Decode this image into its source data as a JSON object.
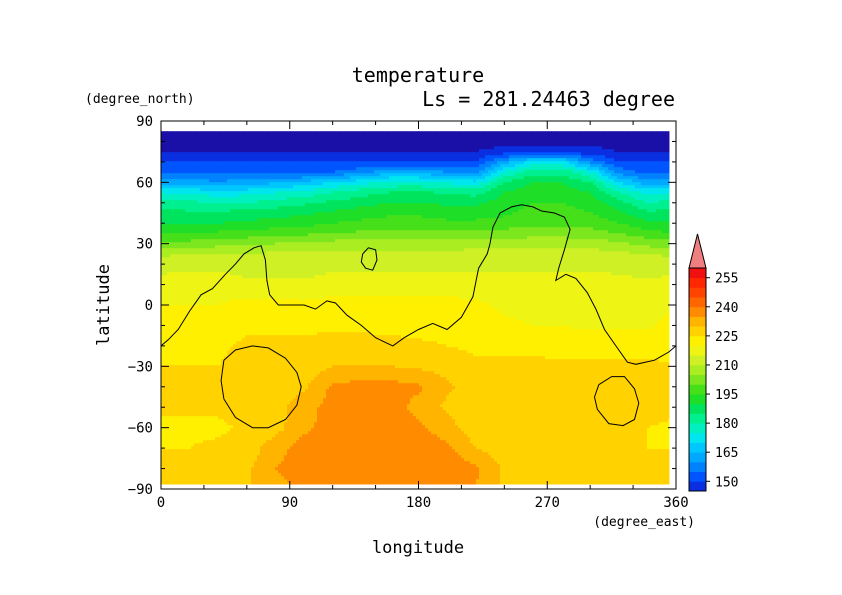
{
  "chart_data": {
    "type": "heatmap",
    "title": "temperature",
    "subtitle": "Ls = 281.24463 degree",
    "xlabel": "longitude",
    "ylabel": "latitude",
    "x_unit": "(degree_east)",
    "y_unit": "(degree_north)",
    "xlim": [
      0,
      360
    ],
    "ylim": [
      -90,
      90
    ],
    "x_ticks": [
      0,
      90,
      180,
      270,
      360
    ],
    "y_ticks": [
      90,
      60,
      30,
      0,
      -30,
      -60,
      -90
    ],
    "data_lat_range": [
      -87.5,
      85
    ],
    "data_lon_range": [
      0,
      355
    ],
    "colorbar": {
      "tick_labels": [
        150,
        165,
        180,
        195,
        210,
        225,
        240,
        255
      ],
      "levels": [
        {
          "lo": null,
          "hi": 145,
          "color": "#1a10a8"
        },
        {
          "lo": 145,
          "hi": 150,
          "color": "#0a2fe0"
        },
        {
          "lo": 150,
          "hi": 155,
          "color": "#0055ff"
        },
        {
          "lo": 155,
          "hi": 160,
          "color": "#0082ff"
        },
        {
          "lo": 160,
          "hi": 165,
          "color": "#00a8ff"
        },
        {
          "lo": 165,
          "hi": 170,
          "color": "#00c8ff"
        },
        {
          "lo": 170,
          "hi": 175,
          "color": "#00e6ee"
        },
        {
          "lo": 175,
          "hi": 180,
          "color": "#00f0c0"
        },
        {
          "lo": 180,
          "hi": 185,
          "color": "#00f090"
        },
        {
          "lo": 185,
          "hi": 190,
          "color": "#00e35c"
        },
        {
          "lo": 190,
          "hi": 195,
          "color": "#1ede28"
        },
        {
          "lo": 195,
          "hi": 200,
          "color": "#46e01a"
        },
        {
          "lo": 200,
          "hi": 205,
          "color": "#7ce61e"
        },
        {
          "lo": 205,
          "hi": 210,
          "color": "#aaee22"
        },
        {
          "lo": 210,
          "hi": 215,
          "color": "#cef024"
        },
        {
          "lo": 215,
          "hi": 220,
          "color": "#eef514"
        },
        {
          "lo": 220,
          "hi": 225,
          "color": "#fff000"
        },
        {
          "lo": 225,
          "hi": 230,
          "color": "#ffd200"
        },
        {
          "lo": 230,
          "hi": 235,
          "color": "#ffb400"
        },
        {
          "lo": 235,
          "hi": 240,
          "color": "#ff8c00"
        },
        {
          "lo": 240,
          "hi": 245,
          "color": "#ff6600"
        },
        {
          "lo": 245,
          "hi": 250,
          "color": "#ff4400"
        },
        {
          "lo": 250,
          "hi": 255,
          "color": "#ff2800"
        },
        {
          "lo": 255,
          "hi": 260,
          "color": "#f01010"
        },
        {
          "lo": 260,
          "hi": null,
          "color": "#f08080"
        }
      ]
    },
    "field": {
      "lons": [
        0,
        20,
        40,
        60,
        80,
        100,
        120,
        140,
        160,
        180,
        200,
        220,
        240,
        260,
        280,
        300,
        320,
        340,
        360
      ],
      "lats": [
        85,
        75,
        70,
        65,
        60,
        55,
        50,
        45,
        40,
        35,
        30,
        25,
        20,
        10,
        0,
        -10,
        -20,
        -30,
        -40,
        -50,
        -60,
        -70,
        -80,
        -87.5
      ],
      "values": [
        [
          140,
          140,
          140,
          140,
          140,
          140,
          140,
          140,
          140,
          140,
          140,
          140,
          140,
          140,
          140,
          140,
          140,
          140,
          140
        ],
        [
          145,
          145,
          145,
          145,
          145,
          145,
          145,
          145,
          145,
          145,
          145,
          145,
          147,
          147,
          147,
          147,
          145,
          145,
          145
        ],
        [
          150,
          150,
          150,
          150,
          150,
          150,
          150,
          150,
          150,
          150,
          150,
          150,
          162,
          172,
          172,
          158,
          150,
          150,
          150
        ],
        [
          154,
          153,
          153,
          153,
          153,
          153,
          155,
          158,
          163,
          163,
          160,
          158,
          175,
          183,
          183,
          175,
          158,
          153,
          154
        ],
        [
          163,
          162,
          161,
          162,
          164,
          166,
          170,
          173,
          176,
          176,
          174,
          172,
          185,
          190,
          190,
          185,
          170,
          162,
          163
        ],
        [
          175,
          174,
          172,
          173,
          175,
          177,
          180,
          183,
          185,
          186,
          184,
          183,
          190,
          193,
          193,
          190,
          180,
          173,
          175
        ],
        [
          182,
          181,
          180,
          180,
          182,
          184,
          186,
          188,
          190,
          190,
          189,
          189,
          192,
          195,
          195,
          193,
          187,
          180,
          182
        ],
        [
          187,
          186,
          186,
          187,
          188,
          189,
          191,
          193,
          194,
          194,
          193,
          193,
          194,
          197,
          197,
          195,
          191,
          186,
          187
        ],
        [
          190,
          190,
          190,
          191,
          192,
          193,
          195,
          196,
          197,
          197,
          196,
          196,
          197,
          199,
          199,
          198,
          195,
          191,
          190
        ],
        [
          195,
          195,
          196,
          197,
          198,
          199,
          200,
          201,
          202,
          202,
          201,
          201,
          202,
          203,
          203,
          202,
          200,
          197,
          195
        ],
        [
          202,
          202,
          203,
          204,
          205,
          206,
          207,
          207,
          207,
          207,
          207,
          208,
          208,
          208,
          208,
          208,
          206,
          203,
          202
        ],
        [
          209,
          210,
          210,
          210,
          211,
          211,
          211,
          211,
          211,
          211,
          211,
          212,
          212,
          212,
          212,
          212,
          211,
          210,
          209
        ],
        [
          213,
          214,
          214,
          213,
          212,
          212,
          214,
          214,
          214,
          214,
          214,
          214,
          214,
          214,
          214,
          214,
          213,
          212,
          213
        ],
        [
          217,
          217,
          217,
          216,
          216,
          216,
          217,
          217,
          217,
          217,
          217,
          217,
          217,
          217,
          217,
          217,
          217,
          216,
          217
        ],
        [
          220,
          220,
          220,
          222,
          222,
          221,
          222,
          222,
          222,
          222,
          222,
          221,
          219,
          218,
          218,
          218,
          218,
          218,
          220
        ],
        [
          222,
          222,
          222,
          224,
          224,
          224,
          224,
          224,
          223,
          223,
          223,
          222,
          221,
          220,
          220,
          219,
          219,
          219,
          222
        ],
        [
          224,
          224,
          224,
          226,
          226,
          226,
          227,
          227,
          227,
          226,
          225,
          224,
          224,
          224,
          223,
          223,
          223,
          223,
          224
        ],
        [
          225,
          225,
          225,
          227,
          227,
          227,
          230,
          230,
          230,
          229,
          228,
          226,
          226,
          226,
          226,
          226,
          226,
          226,
          225
        ],
        [
          226,
          226,
          226,
          227,
          228,
          229,
          236,
          237,
          237,
          236,
          231,
          227,
          227,
          227,
          228,
          228,
          228,
          227,
          226
        ],
        [
          226,
          226,
          226,
          227,
          228,
          233,
          237,
          238,
          238,
          233,
          229,
          227,
          227,
          227,
          227,
          228,
          228,
          227,
          226
        ],
        [
          224,
          224,
          224,
          226,
          228,
          234,
          237,
          238,
          238,
          236,
          232,
          227,
          226,
          226,
          226,
          226,
          226,
          225,
          224
        ],
        [
          225,
          225,
          226,
          227,
          233,
          237,
          238,
          238,
          239,
          239,
          236,
          230,
          227,
          226,
          226,
          226,
          226,
          225,
          225
        ],
        [
          226,
          226,
          228,
          229,
          235,
          238,
          238,
          238,
          239,
          239,
          239,
          236,
          229,
          227,
          227,
          227,
          227,
          226,
          226
        ],
        [
          226,
          226,
          228,
          229,
          234,
          236,
          237,
          237,
          237,
          237,
          237,
          235,
          229,
          227,
          227,
          227,
          227,
          226,
          226
        ]
      ]
    },
    "contour_lines": [
      {
        "name": "main-contour",
        "points": [
          [
            0,
            -20
          ],
          [
            5,
            -17
          ],
          [
            12,
            -12
          ],
          [
            20,
            -3
          ],
          [
            28,
            5
          ],
          [
            36,
            8
          ],
          [
            45,
            15
          ],
          [
            52,
            20
          ],
          [
            58,
            25
          ],
          [
            65,
            28
          ],
          [
            70,
            29
          ],
          [
            73,
            22
          ],
          [
            74,
            12
          ],
          [
            76,
            5
          ],
          [
            82,
            0
          ],
          [
            90,
            0
          ],
          [
            100,
            0
          ],
          [
            108,
            -2
          ],
          [
            116,
            2
          ],
          [
            122,
            1
          ],
          [
            130,
            -5
          ],
          [
            140,
            -10
          ],
          [
            150,
            -16
          ],
          [
            162,
            -20
          ],
          [
            170,
            -16
          ],
          [
            180,
            -12
          ],
          [
            190,
            -9
          ],
          [
            200,
            -12
          ],
          [
            210,
            -6
          ],
          [
            218,
            4
          ],
          [
            222,
            18
          ],
          [
            228,
            25
          ],
          [
            230,
            30
          ],
          [
            232,
            38
          ],
          [
            237,
            45
          ],
          [
            245,
            48
          ],
          [
            252,
            49
          ],
          [
            260,
            48
          ],
          [
            266,
            46
          ],
          [
            275,
            45
          ],
          [
            282,
            43
          ],
          [
            286,
            37
          ],
          [
            282,
            27
          ],
          [
            278,
            18
          ],
          [
            276,
            12
          ],
          [
            283,
            15
          ],
          [
            290,
            13
          ],
          [
            298,
            6
          ],
          [
            304,
            -2
          ],
          [
            310,
            -12
          ],
          [
            318,
            -20
          ],
          [
            326,
            -28
          ],
          [
            332,
            -29
          ],
          [
            345,
            -27
          ],
          [
            355,
            -23
          ],
          [
            360,
            -20
          ]
        ]
      },
      {
        "name": "small-contour-northwest",
        "points": [
          [
            141,
            25
          ],
          [
            145,
            28
          ],
          [
            150,
            27
          ],
          [
            151,
            22
          ],
          [
            148,
            17
          ],
          [
            143,
            18
          ],
          [
            140,
            21
          ],
          [
            141,
            25
          ]
        ]
      },
      {
        "name": "contour-ellipse-west",
        "points": [
          [
            44,
            -27
          ],
          [
            52,
            -22
          ],
          [
            64,
            -20
          ],
          [
            75,
            -21
          ],
          [
            87,
            -26
          ],
          [
            95,
            -33
          ],
          [
            98,
            -40
          ],
          [
            95,
            -49
          ],
          [
            87,
            -56
          ],
          [
            75,
            -60
          ],
          [
            64,
            -60
          ],
          [
            52,
            -55
          ],
          [
            44,
            -46
          ],
          [
            42,
            -37
          ],
          [
            44,
            -27
          ]
        ]
      },
      {
        "name": "contour-ellipse-east",
        "points": [
          [
            306,
            -39
          ],
          [
            315,
            -35
          ],
          [
            324,
            -35
          ],
          [
            331,
            -41
          ],
          [
            334,
            -48
          ],
          [
            331,
            -56
          ],
          [
            323,
            -59
          ],
          [
            313,
            -58
          ],
          [
            305,
            -51
          ],
          [
            303,
            -45
          ],
          [
            306,
            -39
          ]
        ]
      }
    ]
  }
}
